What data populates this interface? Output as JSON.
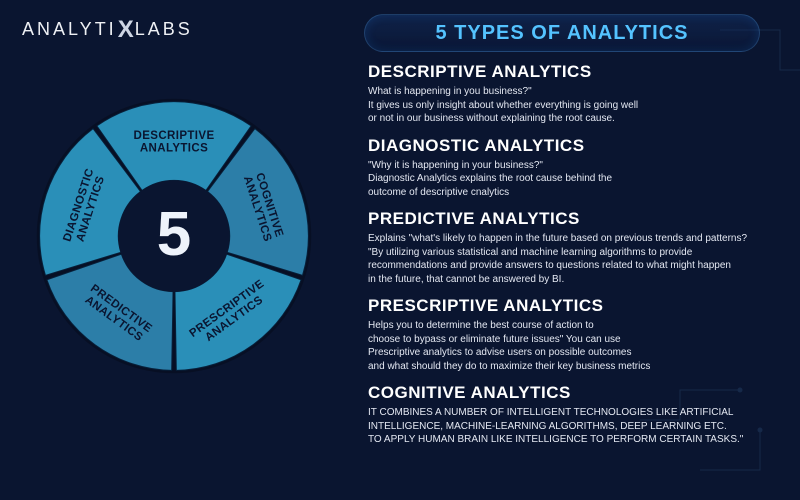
{
  "logo": {
    "pre": "ANALYTI",
    "x": "X",
    "post": "LABS"
  },
  "title": "5 TYPES OF ANALYTICS",
  "center_number": "5",
  "donut": {
    "type": "donut-menu",
    "outer_r": 140,
    "inner_r": 58,
    "gap_deg": 2,
    "center_bg": "#0a1530",
    "segments": [
      {
        "label_line1": "DESCRIPTIVE",
        "label_line2": "ANALYTICS",
        "fill": "#2a8fb8"
      },
      {
        "label_line1": "COGNITIVE",
        "label_line2": "ANALYTICS",
        "fill": "#2c7ea8"
      },
      {
        "label_line1": "PRESCRIPTIVE",
        "label_line2": "ANALYTICS",
        "fill": "#2a8fb8"
      },
      {
        "label_line1": "PREDICTIVE",
        "label_line2": "ANALYTICS",
        "fill": "#2c7ea8"
      },
      {
        "label_line1": "DIAGNOSTIC",
        "label_line2": "ANALYTICS",
        "fill": "#2a8fb8"
      }
    ]
  },
  "sections": [
    {
      "heading": "DESCRIPTIVE ANALYTICS",
      "body": "What is happening in you business?\"\nIt gives us only insight about whether everything is going well\nor not in our business without explaining the root cause."
    },
    {
      "heading": "DIAGNOSTIC ANALYTICS",
      "body": "\"Why it is happening in your business?\"\nDiagnostic Analytics explains the root cause behind the\noutcome of descriptive cnalytics"
    },
    {
      "heading": "PREDICTIVE ANALYTICS",
      "body": "Explains \"what's likely to happen in the future based on previous trends and patterns?\n\"By utilizing various statistical and machine learning algorithms to provide\nrecommendations and provide answers to questions related to what might happen\nin the future, that cannot be answered by BI."
    },
    {
      "heading": "PRESCRIPTIVE ANALYTICS",
      "body": "Helps you to determine the best course of action to\nchoose to bypass or eliminate future issues\" You can use\nPrescriptive analytics to advise users on possible outcomes\nand what should they do to maximize their key business metrics"
    },
    {
      "heading": "COGNITIVE ANALYTICS",
      "body": "IT COMBINES A NUMBER OF INTELLIGENT TECHNOLOGIES LIKE ARTIFICIAL\nINTELLIGENCE, MACHINE-LEARNING ALGORITHMS, DEEP LEARNING ETC.\nTO APPLY HUMAN BRAIN LIKE INTELLIGENCE TO PERFORM CERTAIN TASKS.\""
    }
  ],
  "colors": {
    "page_bg": "#0a1530",
    "title_color": "#54c3ff",
    "heading_color": "#ffffff",
    "body_color": "#e4e8f2"
  }
}
